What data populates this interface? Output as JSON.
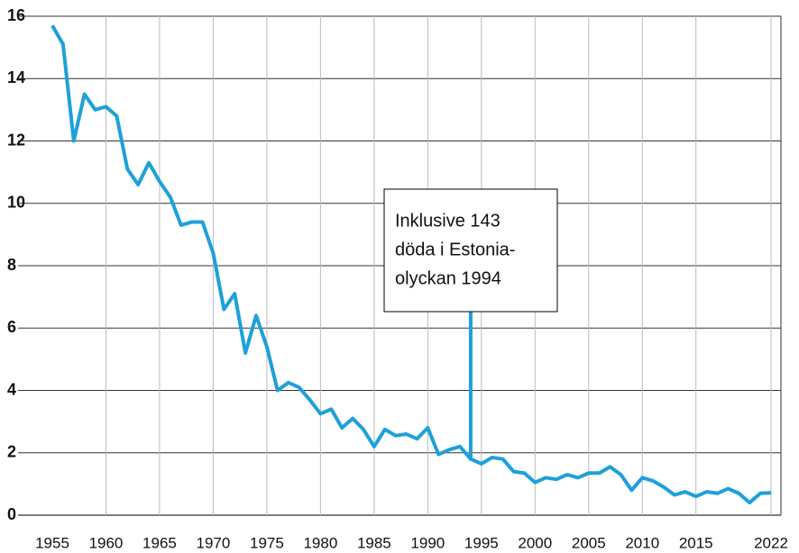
{
  "chart_data": {
    "type": "line",
    "x": [
      1955,
      1956,
      1957,
      1958,
      1959,
      1960,
      1961,
      1962,
      1963,
      1964,
      1965,
      1966,
      1967,
      1968,
      1969,
      1970,
      1971,
      1972,
      1973,
      1974,
      1975,
      1976,
      1977,
      1978,
      1979,
      1980,
      1981,
      1982,
      1983,
      1984,
      1985,
      1986,
      1987,
      1988,
      1989,
      1990,
      1991,
      1992,
      1993,
      1994,
      1995,
      1996,
      1997,
      1998,
      1999,
      2000,
      2001,
      2002,
      2003,
      2004,
      2005,
      2006,
      2007,
      2008,
      2009,
      2010,
      2011,
      2012,
      2013,
      2014,
      2015,
      2016,
      2017,
      2018,
      2019,
      2020,
      2021,
      2022
    ],
    "series": [
      {
        "color": "#1fa0d9",
        "values": [
          15.7,
          15.1,
          12.0,
          13.5,
          13.0,
          13.1,
          12.8,
          11.1,
          10.6,
          11.3,
          10.7,
          10.2,
          9.3,
          9.4,
          9.4,
          8.4,
          6.6,
          7.1,
          5.2,
          6.4,
          5.4,
          4.0,
          4.25,
          4.1,
          3.7,
          3.25,
          3.4,
          2.8,
          3.1,
          2.75,
          2.2,
          2.75,
          2.55,
          2.6,
          2.45,
          2.8,
          1.95,
          2.1,
          2.2,
          1.8,
          1.65,
          1.85,
          1.8,
          1.4,
          1.35,
          1.05,
          1.2,
          1.15,
          1.3,
          1.2,
          1.35,
          1.35,
          1.55,
          1.3,
          0.8,
          1.2,
          1.1,
          0.9,
          0.65,
          0.75,
          0.6,
          0.75,
          0.7,
          0.85,
          0.7,
          0.4,
          0.7,
          0.72
        ]
      }
    ],
    "xlim": [
      1955,
      2022
    ],
    "xticks": [
      1955,
      1960,
      1965,
      1970,
      1975,
      1980,
      1985,
      1990,
      1995,
      2000,
      2005,
      2010,
      2015,
      2022
    ],
    "ylim": [
      0,
      16
    ],
    "yticks": [
      0,
      2,
      4,
      6,
      8,
      10,
      12,
      14,
      16
    ],
    "grid": true,
    "annotation": {
      "x": 1994,
      "lines": [
        "Inklusive 143",
        "döda i Estonia-",
        "olyckan 1994"
      ]
    }
  }
}
